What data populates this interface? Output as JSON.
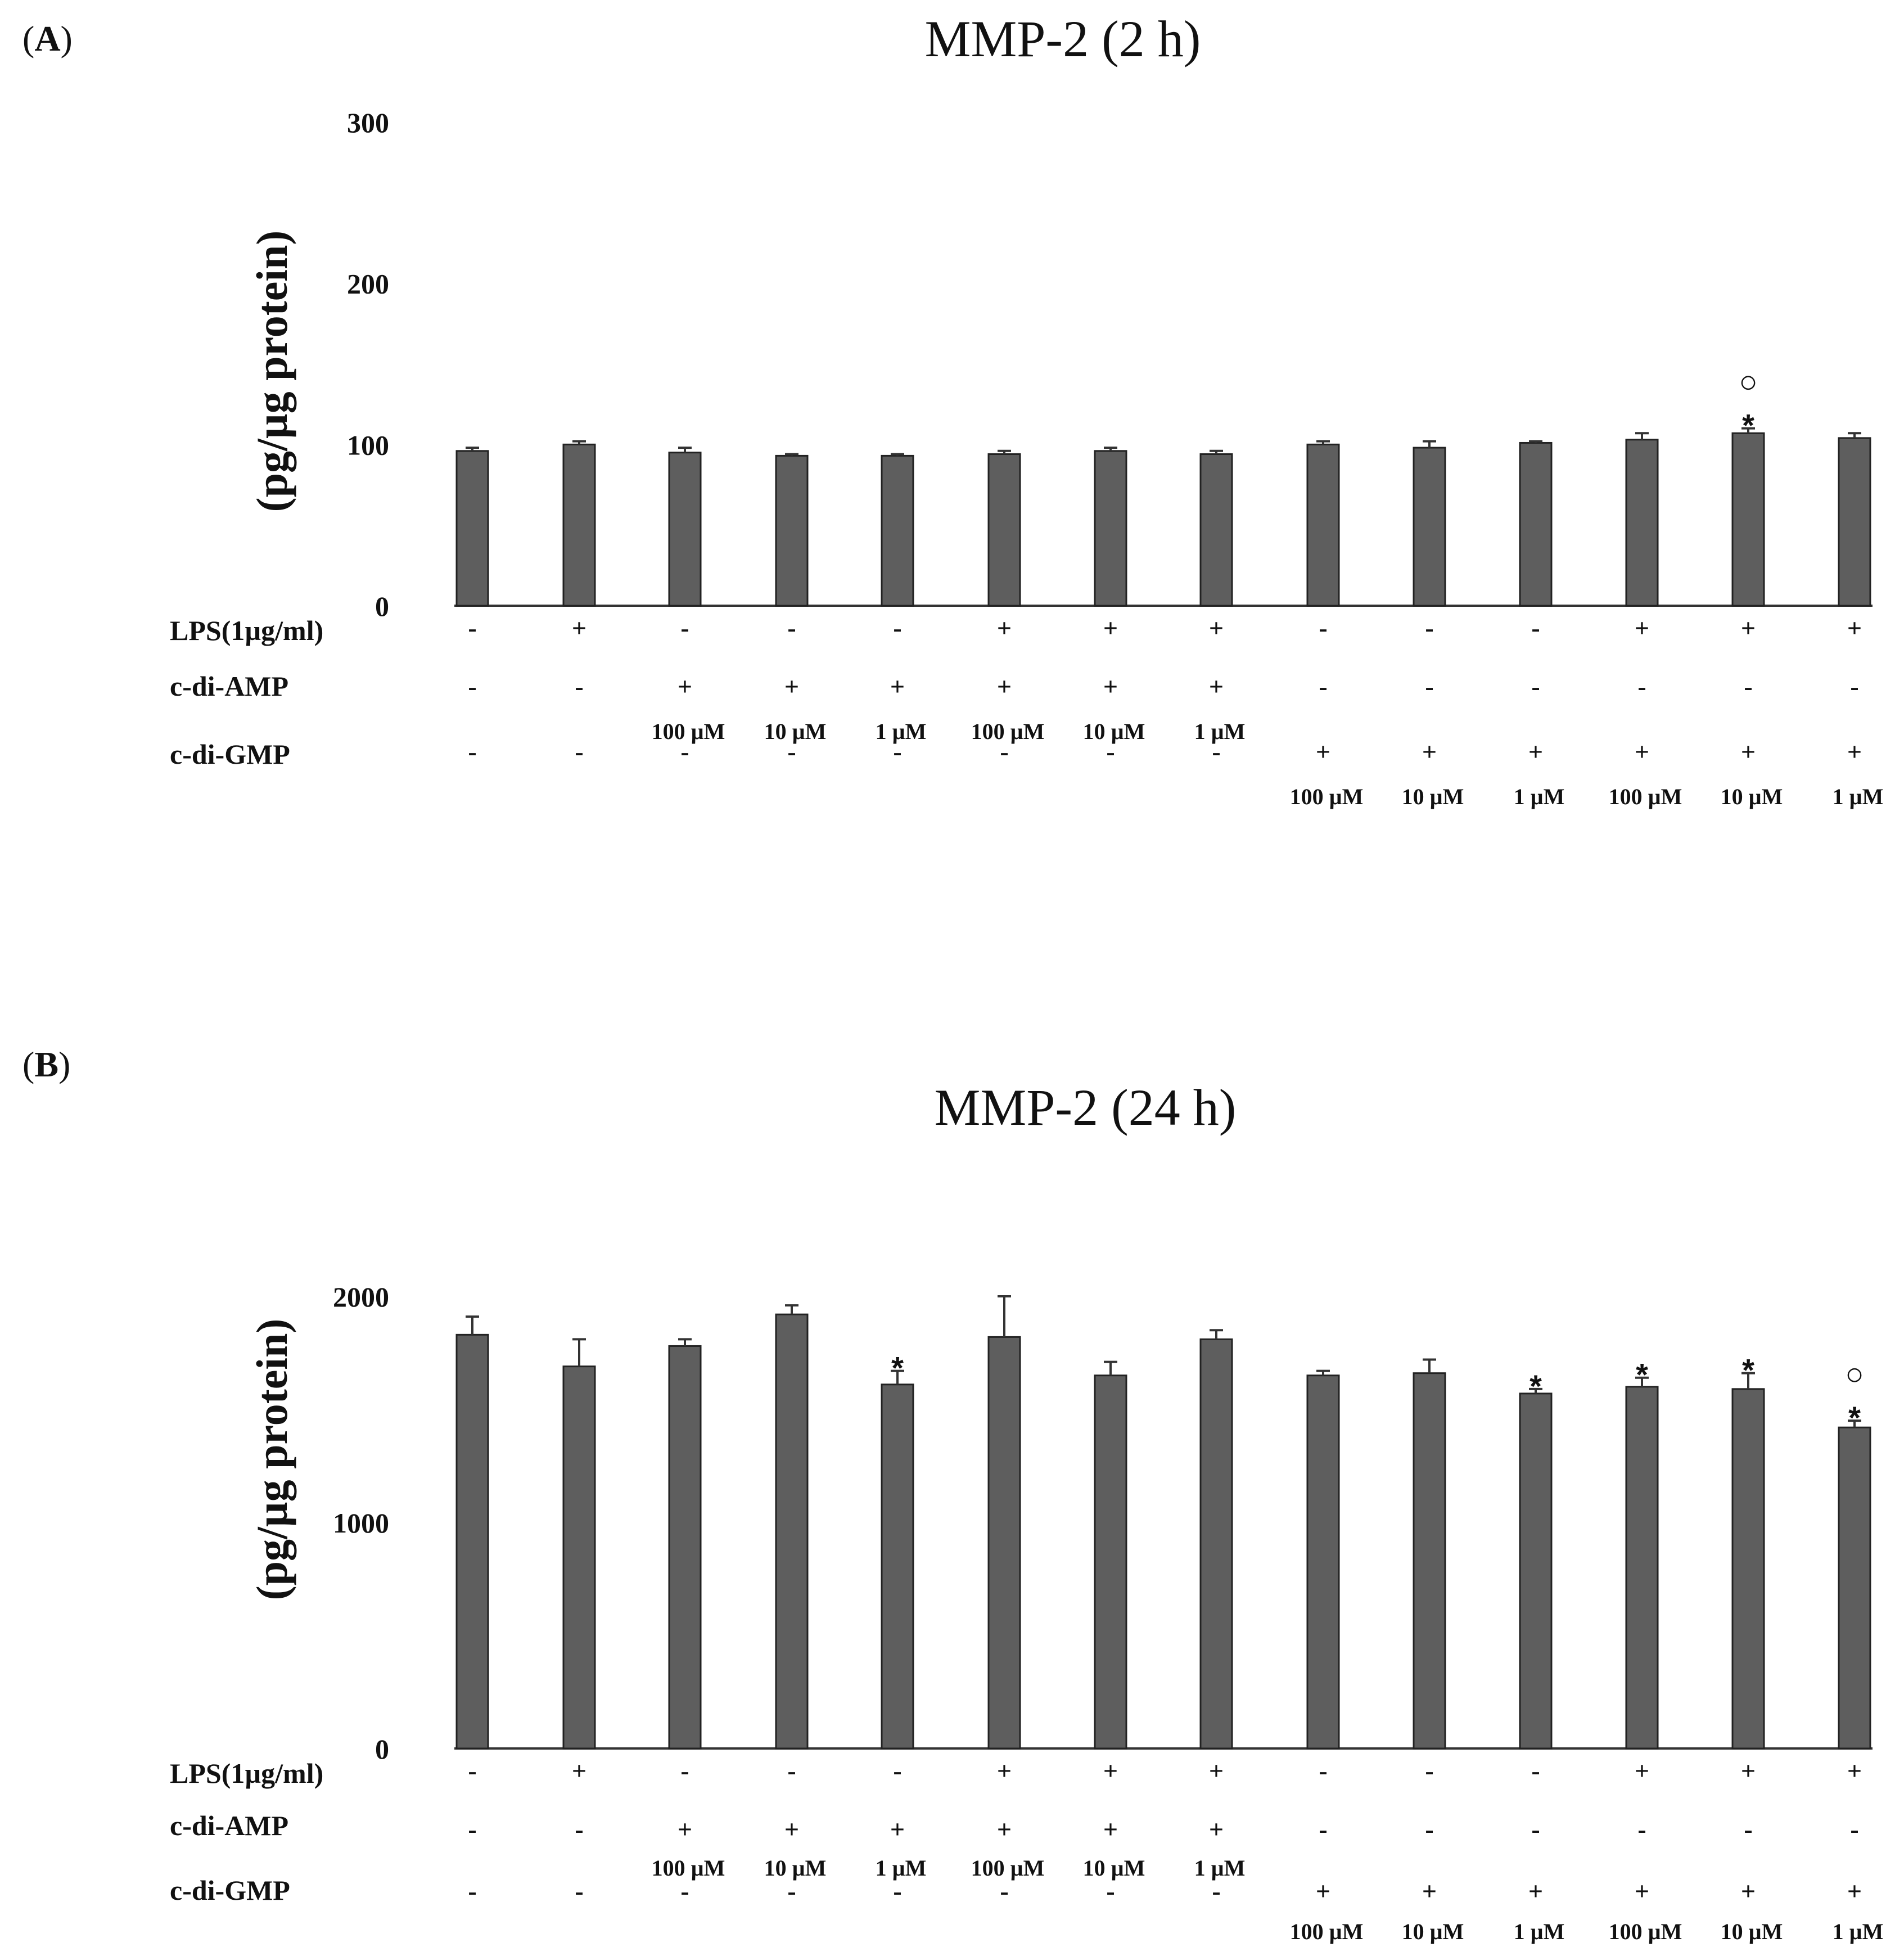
{
  "chart_data": [
    {
      "type": "bar",
      "panel_label": "(A)",
      "title": "MMP-2 (2 h)",
      "ylabel": "(pg/µg protein)",
      "ylim": [
        0,
        300
      ],
      "yticks": [
        "0",
        "100",
        "200",
        "300"
      ],
      "values": [
        96,
        100,
        95,
        93,
        93,
        94,
        96,
        94,
        100,
        98,
        101,
        103,
        107,
        104
      ],
      "errors": [
        2,
        2,
        3,
        1,
        1,
        2,
        2,
        2,
        2,
        4,
        1,
        4,
        3,
        3
      ],
      "annotations": [
        "",
        "",
        "",
        "",
        "",
        "",
        "",
        "",
        "",
        "",
        "",
        "",
        "○\n*",
        ""
      ],
      "rows": [
        {
          "label": "LPS(1µg/ml)",
          "symbols": [
            "-",
            "+",
            "-",
            "-",
            "-",
            "+",
            "+",
            "+",
            "-",
            "-",
            "-",
            "+",
            "+",
            "+"
          ]
        },
        {
          "label": "c-di-AMP",
          "symbols": [
            "-",
            "-",
            "+",
            "+",
            "+",
            "+",
            "+",
            "+",
            "-",
            "-",
            "-",
            "-",
            "-",
            "-"
          ],
          "concentrations": [
            "",
            "",
            "100 µM",
            "10 µM",
            "1 µM",
            "100 µM",
            "10 µM",
            "1 µM",
            "",
            "",
            "",
            "",
            "",
            ""
          ]
        },
        {
          "label": "c-di-GMP",
          "symbols": [
            "-",
            "-",
            "-",
            "-",
            "-",
            "-",
            "-",
            "-",
            "+",
            "+",
            "+",
            "+",
            "+",
            "+"
          ],
          "concentrations": [
            "",
            "",
            "",
            "",
            "",
            "",
            "",
            "",
            "100 µM",
            "10 µM",
            "1 µM",
            "100 µM",
            "10 µM",
            "1 µM"
          ]
        }
      ]
    },
    {
      "type": "bar",
      "panel_label": "(B)",
      "title": "MMP-2 (24 h)",
      "ylabel": "(pg/µg protein)",
      "ylim": [
        0,
        2000
      ],
      "yticks": [
        "0",
        "1000",
        "2000"
      ],
      "values": [
        1830,
        1690,
        1780,
        1920,
        1610,
        1820,
        1650,
        1810,
        1650,
        1660,
        1570,
        1600,
        1590,
        1420
      ],
      "errors": [
        80,
        120,
        30,
        40,
        60,
        180,
        60,
        40,
        20,
        60,
        20,
        40,
        70,
        30
      ],
      "annotations": [
        "",
        "",
        "",
        "",
        "*",
        "",
        "",
        "",
        "",
        "",
        "*",
        "*",
        "*",
        "○\n*"
      ],
      "rows": [
        {
          "label": "LPS(1µg/ml)",
          "symbols": [
            "-",
            "+",
            "-",
            "-",
            "-",
            "+",
            "+",
            "+",
            "-",
            "-",
            "-",
            "+",
            "+",
            "+"
          ]
        },
        {
          "label": "c-di-AMP",
          "symbols": [
            "-",
            "-",
            "+",
            "+",
            "+",
            "+",
            "+",
            "+",
            "-",
            "-",
            "-",
            "-",
            "-",
            "-"
          ],
          "concentrations": [
            "",
            "",
            "100 µM",
            "10 µM",
            "1 µM",
            "100 µM",
            "10 µM",
            "1 µM",
            "",
            "",
            "",
            "",
            "",
            ""
          ]
        },
        {
          "label": "c-di-GMP",
          "symbols": [
            "-",
            "-",
            "-",
            "-",
            "-",
            "-",
            "-",
            "-",
            "+",
            "+",
            "+",
            "+",
            "+",
            "+"
          ],
          "concentrations": [
            "",
            "",
            "",
            "",
            "",
            "",
            "",
            "",
            "100 µM",
            "10 µM",
            "1 µM",
            "100 µM",
            "10 µM",
            "1 µM"
          ]
        }
      ]
    }
  ]
}
